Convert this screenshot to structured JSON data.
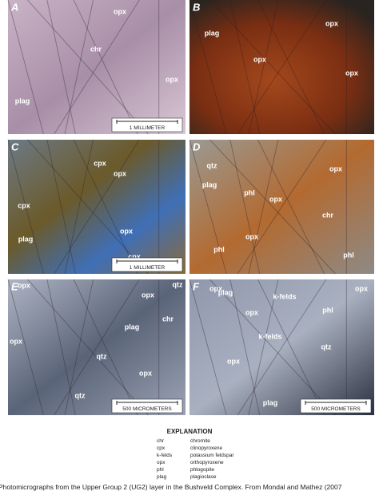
{
  "panels": [
    {
      "letter": "A",
      "scale": "1 MILLIMETER",
      "labels": [
        "opx",
        "chr",
        "opx",
        "plag"
      ]
    },
    {
      "letter": "B",
      "labels": [
        "plag",
        "opx",
        "opx",
        "opx"
      ]
    },
    {
      "letter": "C",
      "scale": "1 MILLIMETER",
      "labels": [
        "cpx",
        "opx",
        "cpx",
        "plag",
        "opx",
        "cpx"
      ]
    },
    {
      "letter": "D",
      "labels": [
        "qtz",
        "opx",
        "plag",
        "phl",
        "opx",
        "chr",
        "opx",
        "phl",
        "phl"
      ]
    },
    {
      "letter": "E",
      "scale": "500 MICROMETERS",
      "labels": [
        "opx",
        "qtz",
        "opx",
        "chr",
        "plag",
        "opx",
        "qtz",
        "opx",
        "qtz"
      ]
    },
    {
      "letter": "F",
      "scale": "500 MICROMETERS",
      "labels": [
        "opx",
        "plag",
        "opx",
        "k-felds",
        "opx",
        "phl",
        "k-felds",
        "qtz",
        "opx",
        "plag"
      ]
    }
  ],
  "explanation": {
    "title": "EXPLANATION",
    "rows": [
      [
        "chr",
        "chromite"
      ],
      [
        "cpx",
        "clinopyroxene"
      ],
      [
        "k-felds",
        "potassium feldspar"
      ],
      [
        "opx",
        "orthopyroxene"
      ],
      [
        "phl",
        "phlogopite"
      ],
      [
        "plag",
        "plagioclase"
      ]
    ]
  },
  "caption": "Photomicrographs from the Upper Group 2 (UG2) layer in the Bushveld Complex. From Mondal and Mathez (2007"
}
